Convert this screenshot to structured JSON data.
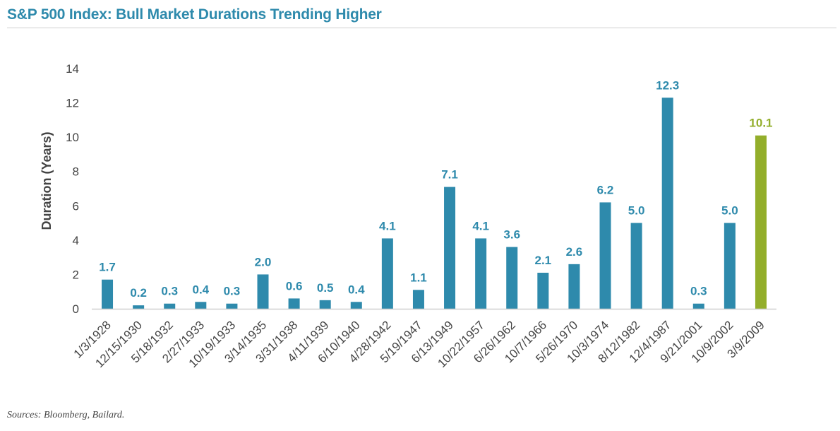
{
  "title": "S&P 500 Index: Bull Market Durations Trending Higher",
  "source": "Sources: Bloomberg, Bailard.",
  "colors": {
    "bar": "#2e8aac",
    "highlight": "#93ae2b",
    "title": "#2e8aac",
    "axis": "#cfcfcf"
  },
  "chart_data": {
    "type": "bar",
    "title": "S&P 500 Index: Bull Market Durations Trending Higher",
    "xlabel": "",
    "ylabel": "Duration (Years)",
    "ylim": [
      0,
      14
    ],
    "yticks": [
      0,
      2,
      4,
      6,
      8,
      10,
      12,
      14
    ],
    "grid": false,
    "categories": [
      "1/3/1928",
      "12/15/1930",
      "5/18/1932",
      "2/27/1933",
      "10/19/1933",
      "3/14/1935",
      "3/31/1938",
      "4/11/1939",
      "6/10/1940",
      "4/28/1942",
      "5/19/1947",
      "6/13/1949",
      "10/22/1957",
      "6/26/1962",
      "10/7/1966",
      "5/26/1970",
      "10/3/1974",
      "8/12/1982",
      "12/4/1987",
      "9/21/2001",
      "10/9/2002",
      "3/9/2009"
    ],
    "values": [
      1.7,
      0.2,
      0.3,
      0.4,
      0.3,
      2.0,
      0.6,
      0.5,
      0.4,
      4.1,
      1.1,
      7.1,
      4.1,
      3.6,
      2.1,
      2.6,
      6.2,
      5.0,
      12.3,
      0.3,
      5.0,
      10.1
    ],
    "data_labels": [
      "1.7",
      "0.2",
      "0.3",
      "0.4",
      "0.3",
      "2.0",
      "0.6",
      "0.5",
      "0.4",
      "4.1",
      "1.1",
      "7.1",
      "4.1",
      "3.6",
      "2.1",
      "2.6",
      "6.2",
      "5.0",
      "12.3",
      "0.3",
      "5.0",
      "10.1"
    ],
    "highlight_index": 21
  }
}
